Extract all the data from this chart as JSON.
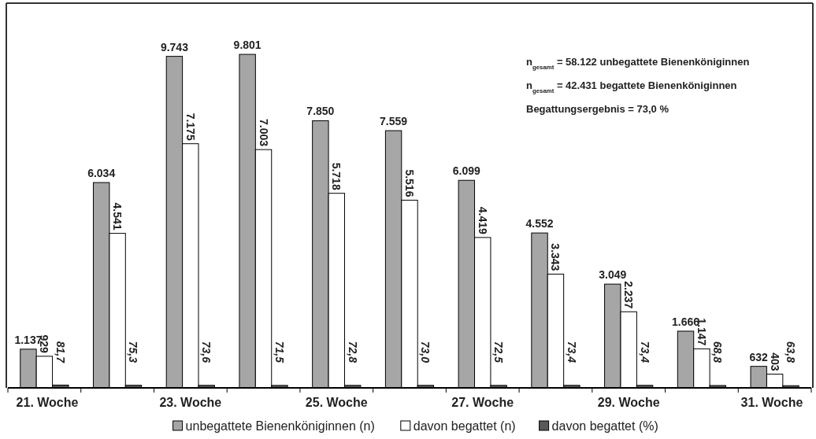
{
  "chart_data": {
    "type": "bar",
    "categories": [
      "21. Woche",
      null,
      "23. Woche",
      null,
      "25. Woche",
      null,
      "27. Woche",
      null,
      "29. Woche",
      null,
      "31. Woche"
    ],
    "series": [
      {
        "name": "unbegattete Bienenköniginnen (n)",
        "color": "#a6a6a6",
        "values": [
          1137,
          6034,
          9743,
          9801,
          7850,
          7559,
          6099,
          4552,
          3049,
          1666,
          632
        ],
        "value_labels": [
          "1.137",
          "6.034",
          "9.743",
          "9.801",
          "7.850",
          "7.559",
          "6.099",
          "4.552",
          "3.049",
          "1.666",
          "632"
        ]
      },
      {
        "name": "davon begattet (n)",
        "color": "#ffffff",
        "values": [
          929,
          4541,
          7175,
          7003,
          5718,
          5516,
          4419,
          3343,
          2237,
          1147,
          403
        ],
        "value_labels": [
          "929",
          "4.541",
          "7.175",
          "7.003",
          "5.718",
          "5.516",
          "4.419",
          "3.343",
          "2.237",
          "1.147",
          "403"
        ]
      },
      {
        "name": "davon begattet (%)",
        "color": "#595959",
        "values": [
          81.7,
          75.3,
          73.6,
          71.5,
          72.8,
          73.0,
          72.5,
          73.4,
          73.4,
          68.8,
          63.8
        ],
        "value_labels": [
          "81,7",
          "75,3",
          "73,6",
          "71,5",
          "72,8",
          "73,0",
          "72,5",
          "73,4",
          "73,4",
          "68,8",
          "63,8"
        ]
      }
    ],
    "annotations": [
      "n$_{gesamt}$ = 58.122 unbegattete Bienenköniginnen",
      "n$_{gesamt}$ = 42.431 begattete Bienenköniginnen",
      "Begattungsergebnis = 73,0 %"
    ],
    "legend": "bottom",
    "grid": false
  }
}
